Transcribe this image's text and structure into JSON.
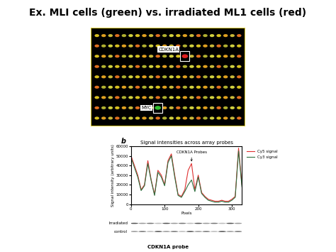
{
  "title": "Ex. MLI cells (green) vs. irradiated ML1 cells (red)",
  "array_image": {
    "labels": [
      "CDKN1A",
      "MYC"
    ]
  },
  "panel_label": "b",
  "chart_data": {
    "type": "line",
    "title": "Signal intensities across array probes",
    "xlabel": "Pixels",
    "ylabel": "Signal intensity (arbitrary units)",
    "annotation": "CDKN1A Probes",
    "x": [
      0,
      10,
      20,
      30,
      40,
      50,
      60,
      70,
      80,
      90,
      100,
      110,
      120,
      130,
      140,
      150,
      160,
      170,
      180,
      190,
      200,
      210,
      220,
      230,
      240,
      250,
      260,
      270,
      280,
      290,
      300,
      310,
      320,
      330
    ],
    "series": [
      {
        "name": "Cy5 signal",
        "color": "#e03030",
        "values": [
          50000,
          40000,
          30000,
          15000,
          20000,
          45000,
          25000,
          10000,
          35000,
          30000,
          20000,
          45000,
          52000,
          30000,
          10000,
          8000,
          15000,
          35000,
          42000,
          15000,
          30000,
          12000,
          8000,
          5000,
          4000,
          3000,
          3000,
          4000,
          3000,
          3000,
          5000,
          8000,
          58000,
          20000
        ]
      },
      {
        "name": "Cy3 signal",
        "color": "#2f6f3f",
        "values": [
          48000,
          38000,
          28000,
          14000,
          19000,
          42000,
          24000,
          9000,
          33000,
          28000,
          19000,
          43000,
          50000,
          28000,
          9000,
          7000,
          13000,
          20000,
          25000,
          13000,
          28000,
          11000,
          7000,
          4000,
          3000,
          2000,
          2000,
          3000,
          2000,
          2000,
          4000,
          7000,
          55000,
          18000
        ]
      }
    ],
    "xlim": [
      0,
      330
    ],
    "xticks": [
      0,
      100,
      200,
      300
    ],
    "ylim": [
      0,
      60000
    ],
    "yticks": [
      0,
      10000,
      20000,
      30000,
      40000,
      50000,
      60000
    ],
    "legend": "upper right"
  },
  "probe_strip": {
    "rows": [
      "Irradiated",
      "control"
    ],
    "label": "CDKN1A probe"
  }
}
